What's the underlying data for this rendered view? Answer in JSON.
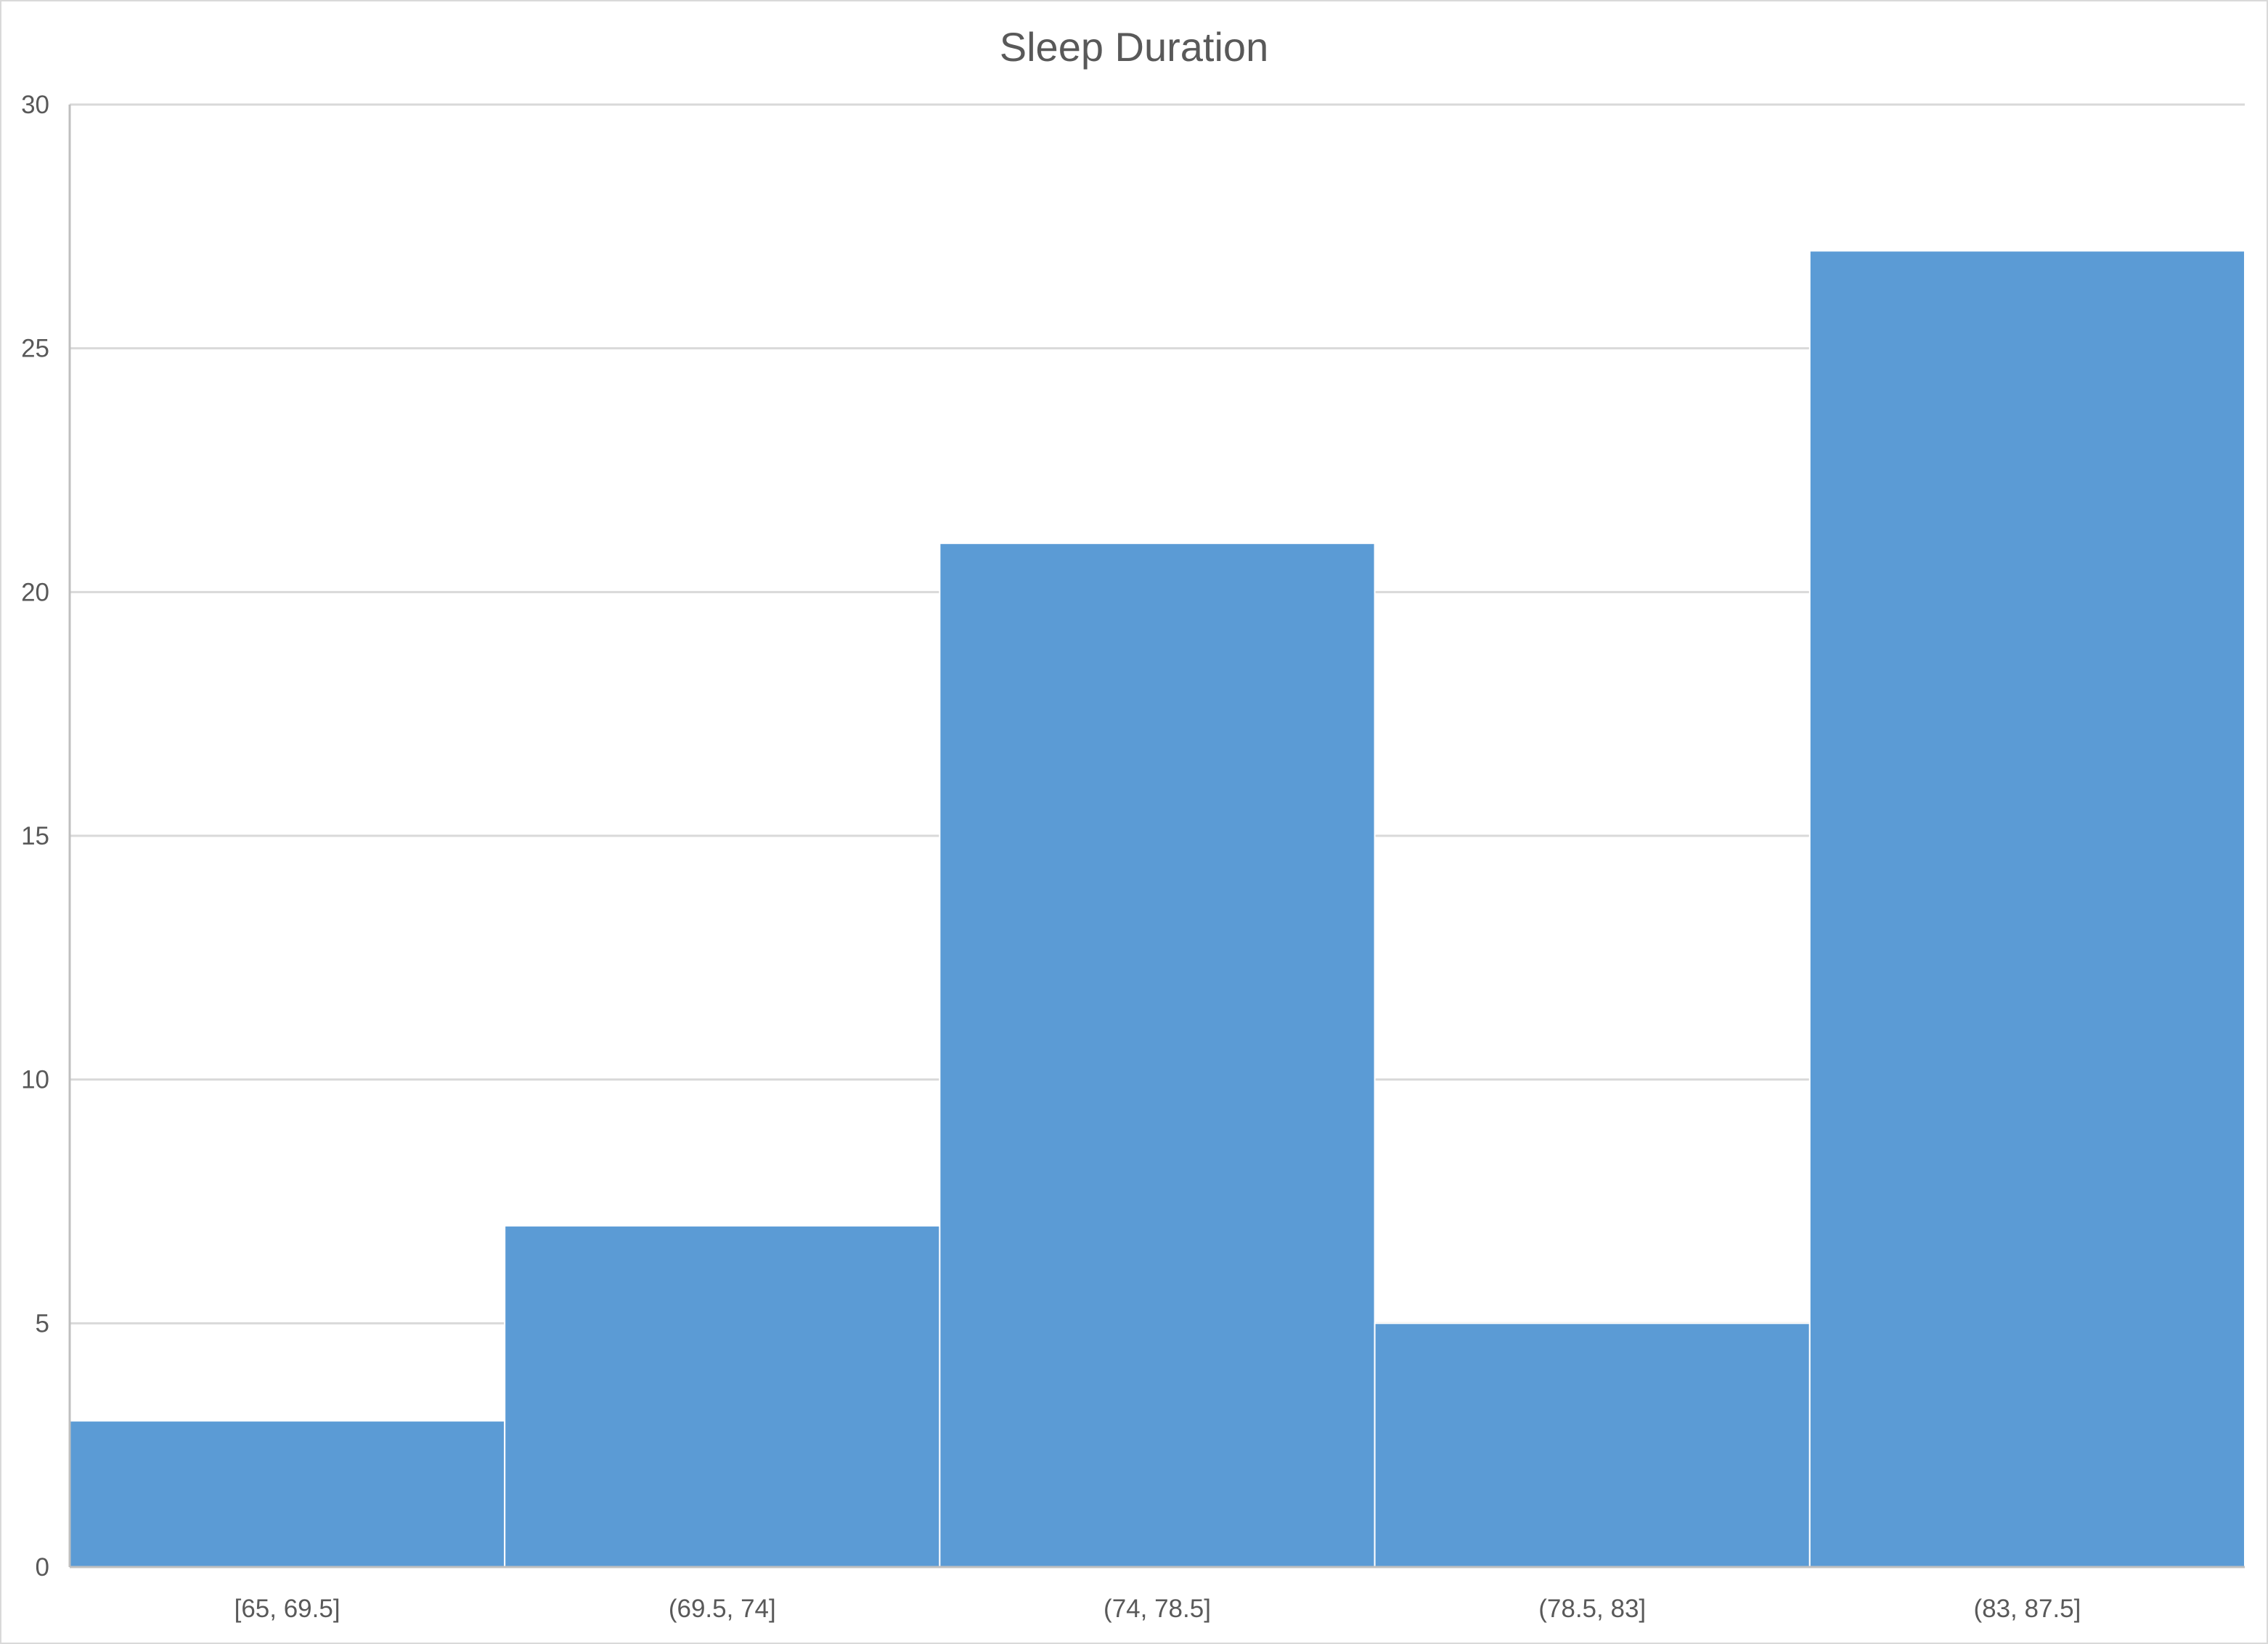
{
  "chart_data": {
    "type": "bar",
    "title": "Sleep Duration",
    "xlabel": "",
    "ylabel": "",
    "categories": [
      "[65, 69.5]",
      "(69.5, 74]",
      "(74, 78.5]",
      "(78.5, 83]",
      "(83, 87.5]"
    ],
    "values": [
      3,
      7,
      21,
      5,
      27
    ],
    "ylim": [
      0,
      30
    ],
    "yticks": [
      "0",
      "5",
      "10",
      "15",
      "20",
      "25",
      "30"
    ],
    "grid": true,
    "legend": "none",
    "bar_color": "#5b9bd5",
    "histogram": true
  }
}
